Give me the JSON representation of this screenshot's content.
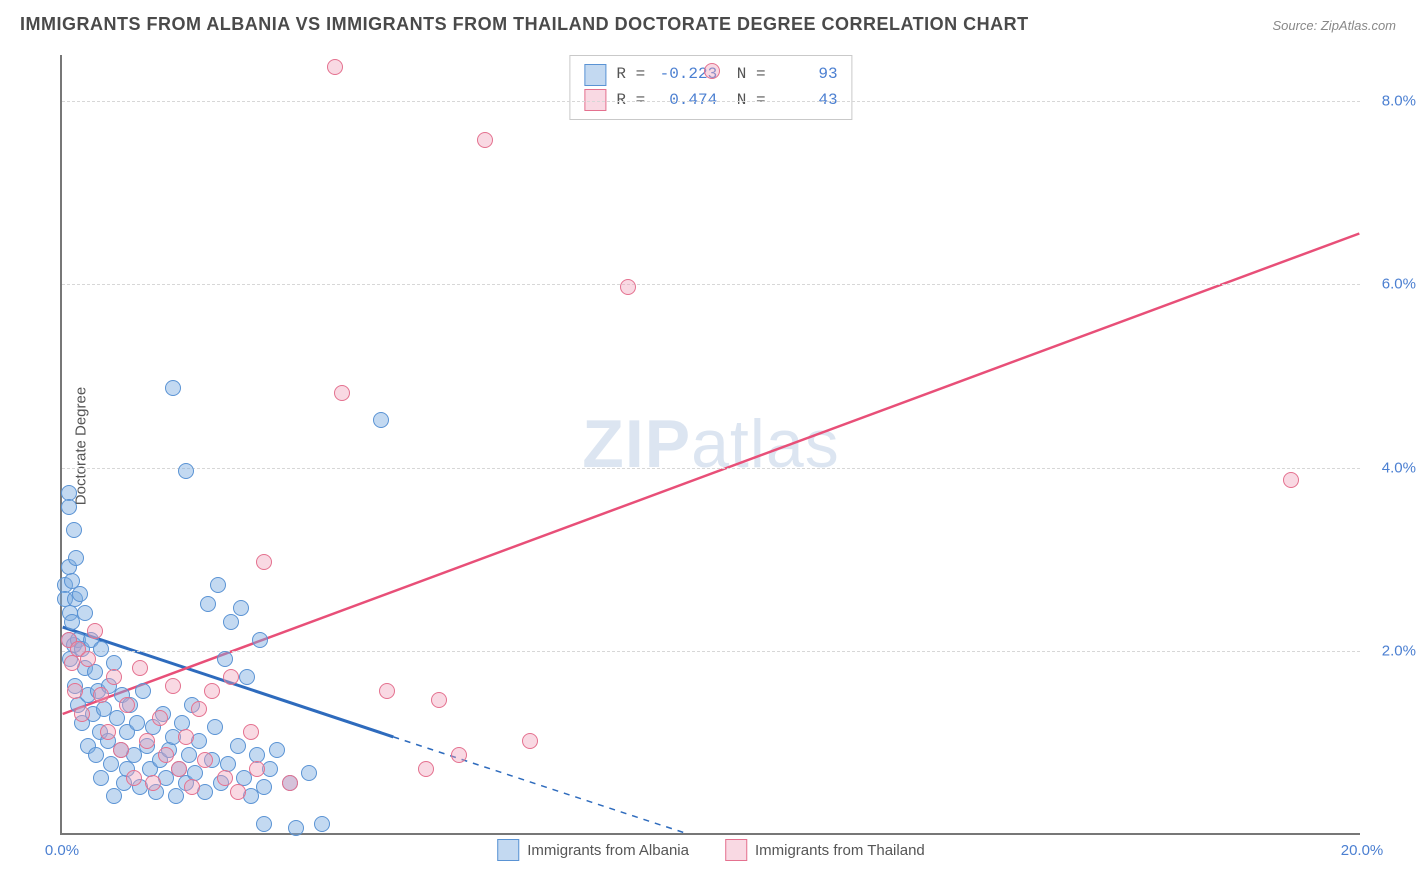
{
  "title": "IMMIGRANTS FROM ALBANIA VS IMMIGRANTS FROM THAILAND DOCTORATE DEGREE CORRELATION CHART",
  "source": "Source: ZipAtlas.com",
  "ylabel": "Doctorate Degree",
  "watermark_bold": "ZIP",
  "watermark_rest": "atlas",
  "chart": {
    "type": "scatter",
    "xlim": [
      0,
      20
    ],
    "ylim": [
      0,
      8.5
    ],
    "x_ticks": [
      0,
      20
    ],
    "x_tick_labels": [
      "0.0%",
      "20.0%"
    ],
    "y_ticks": [
      2,
      4,
      6,
      8
    ],
    "y_tick_labels": [
      "2.0%",
      "4.0%",
      "6.0%",
      "8.0%"
    ],
    "grid_color": "#d7d7d7",
    "axis_color": "#777777",
    "background_color": "#ffffff",
    "marker_radius": 8,
    "marker_border": 1.5,
    "series": [
      {
        "name": "Immigrants from Albania",
        "fill": "rgba(122,170,225,0.45)",
        "stroke": "#5a93d4",
        "R": "-0.223",
        "N": "93",
        "trend": {
          "x1": 0,
          "y1": 2.25,
          "x2": 5.1,
          "y2": 1.05,
          "color": "#2e6bbd",
          "width": 3,
          "extend_to_x": 9.6,
          "extend_to_y": 0.0,
          "dash": "6,6"
        },
        "points": [
          [
            0.05,
            2.7
          ],
          [
            0.05,
            2.55
          ],
          [
            0.1,
            2.9
          ],
          [
            0.1,
            2.1
          ],
          [
            0.1,
            3.7
          ],
          [
            0.1,
            3.55
          ],
          [
            0.12,
            2.4
          ],
          [
            0.12,
            1.9
          ],
          [
            0.15,
            2.75
          ],
          [
            0.15,
            2.3
          ],
          [
            0.18,
            3.3
          ],
          [
            0.18,
            2.05
          ],
          [
            0.2,
            2.55
          ],
          [
            0.2,
            1.6
          ],
          [
            0.22,
            3.0
          ],
          [
            0.25,
            2.1
          ],
          [
            0.25,
            1.4
          ],
          [
            0.28,
            2.6
          ],
          [
            0.3,
            2.0
          ],
          [
            0.3,
            1.2
          ],
          [
            0.35,
            1.8
          ],
          [
            0.35,
            2.4
          ],
          [
            0.4,
            1.5
          ],
          [
            0.4,
            0.95
          ],
          [
            0.45,
            2.1
          ],
          [
            0.48,
            1.3
          ],
          [
            0.5,
            1.75
          ],
          [
            0.52,
            0.85
          ],
          [
            0.55,
            1.55
          ],
          [
            0.58,
            1.1
          ],
          [
            0.6,
            2.0
          ],
          [
            0.6,
            0.6
          ],
          [
            0.65,
            1.35
          ],
          [
            0.7,
            1.0
          ],
          [
            0.72,
            1.6
          ],
          [
            0.75,
            0.75
          ],
          [
            0.8,
            1.85
          ],
          [
            0.8,
            0.4
          ],
          [
            0.85,
            1.25
          ],
          [
            0.9,
            0.9
          ],
          [
            0.92,
            1.5
          ],
          [
            0.95,
            0.55
          ],
          [
            1.0,
            1.1
          ],
          [
            1.0,
            0.7
          ],
          [
            1.05,
            1.4
          ],
          [
            1.1,
            0.85
          ],
          [
            1.15,
            1.2
          ],
          [
            1.2,
            0.5
          ],
          [
            1.25,
            1.55
          ],
          [
            1.3,
            0.95
          ],
          [
            1.35,
            0.7
          ],
          [
            1.4,
            1.15
          ],
          [
            1.45,
            0.45
          ],
          [
            1.5,
            0.8
          ],
          [
            1.55,
            1.3
          ],
          [
            1.6,
            0.6
          ],
          [
            1.65,
            0.9
          ],
          [
            1.7,
            1.05
          ],
          [
            1.75,
            0.4
          ],
          [
            1.8,
            0.7
          ],
          [
            1.85,
            1.2
          ],
          [
            1.9,
            0.55
          ],
          [
            1.95,
            0.85
          ],
          [
            2.0,
            1.4
          ],
          [
            2.05,
            0.65
          ],
          [
            2.1,
            1.0
          ],
          [
            2.2,
            0.45
          ],
          [
            2.25,
            2.5
          ],
          [
            2.3,
            0.8
          ],
          [
            2.35,
            1.15
          ],
          [
            2.4,
            2.7
          ],
          [
            2.45,
            0.55
          ],
          [
            2.5,
            1.9
          ],
          [
            2.55,
            0.75
          ],
          [
            2.6,
            2.3
          ],
          [
            2.7,
            0.95
          ],
          [
            2.75,
            2.45
          ],
          [
            2.8,
            0.6
          ],
          [
            2.85,
            1.7
          ],
          [
            2.9,
            0.4
          ],
          [
            3.0,
            0.85
          ],
          [
            3.05,
            2.1
          ],
          [
            3.1,
            0.5
          ],
          [
            3.2,
            0.7
          ],
          [
            1.7,
            4.85
          ],
          [
            1.9,
            3.95
          ],
          [
            3.3,
            0.9
          ],
          [
            3.5,
            0.55
          ],
          [
            3.6,
            0.05
          ],
          [
            4.9,
            4.5
          ],
          [
            3.1,
            0.1
          ],
          [
            3.8,
            0.65
          ],
          [
            4.0,
            0.1
          ]
        ]
      },
      {
        "name": "Immigrants from Thailand",
        "fill": "rgba(240,160,185,0.40)",
        "stroke": "#e4718f",
        "R": "0.474",
        "N": "43",
        "trend": {
          "x1": 0,
          "y1": 1.3,
          "x2": 20,
          "y2": 6.55,
          "color": "#e84f78",
          "width": 2.5
        },
        "points": [
          [
            0.1,
            2.1
          ],
          [
            0.15,
            1.85
          ],
          [
            0.2,
            1.55
          ],
          [
            0.25,
            2.0
          ],
          [
            0.3,
            1.3
          ],
          [
            0.4,
            1.9
          ],
          [
            0.5,
            2.2
          ],
          [
            0.6,
            1.5
          ],
          [
            0.7,
            1.1
          ],
          [
            0.8,
            1.7
          ],
          [
            0.9,
            0.9
          ],
          [
            1.0,
            1.4
          ],
          [
            1.1,
            0.6
          ],
          [
            1.2,
            1.8
          ],
          [
            1.3,
            1.0
          ],
          [
            1.4,
            0.55
          ],
          [
            1.5,
            1.25
          ],
          [
            1.6,
            0.85
          ],
          [
            1.7,
            1.6
          ],
          [
            1.8,
            0.7
          ],
          [
            1.9,
            1.05
          ],
          [
            2.0,
            0.5
          ],
          [
            2.1,
            1.35
          ],
          [
            2.2,
            0.8
          ],
          [
            2.3,
            1.55
          ],
          [
            2.5,
            0.6
          ],
          [
            2.6,
            1.7
          ],
          [
            2.7,
            0.45
          ],
          [
            2.9,
            1.1
          ],
          [
            3.0,
            0.7
          ],
          [
            3.1,
            2.95
          ],
          [
            3.5,
            0.55
          ],
          [
            4.3,
            4.8
          ],
          [
            4.2,
            8.35
          ],
          [
            5.0,
            1.55
          ],
          [
            5.6,
            0.7
          ],
          [
            5.8,
            1.45
          ],
          [
            6.5,
            7.55
          ],
          [
            6.1,
            0.85
          ],
          [
            7.2,
            1.0
          ],
          [
            8.7,
            5.95
          ],
          [
            10.0,
            8.3
          ],
          [
            18.9,
            3.85
          ]
        ]
      }
    ]
  },
  "legend_labels": [
    "Immigrants from Albania",
    "Immigrants from Thailand"
  ]
}
